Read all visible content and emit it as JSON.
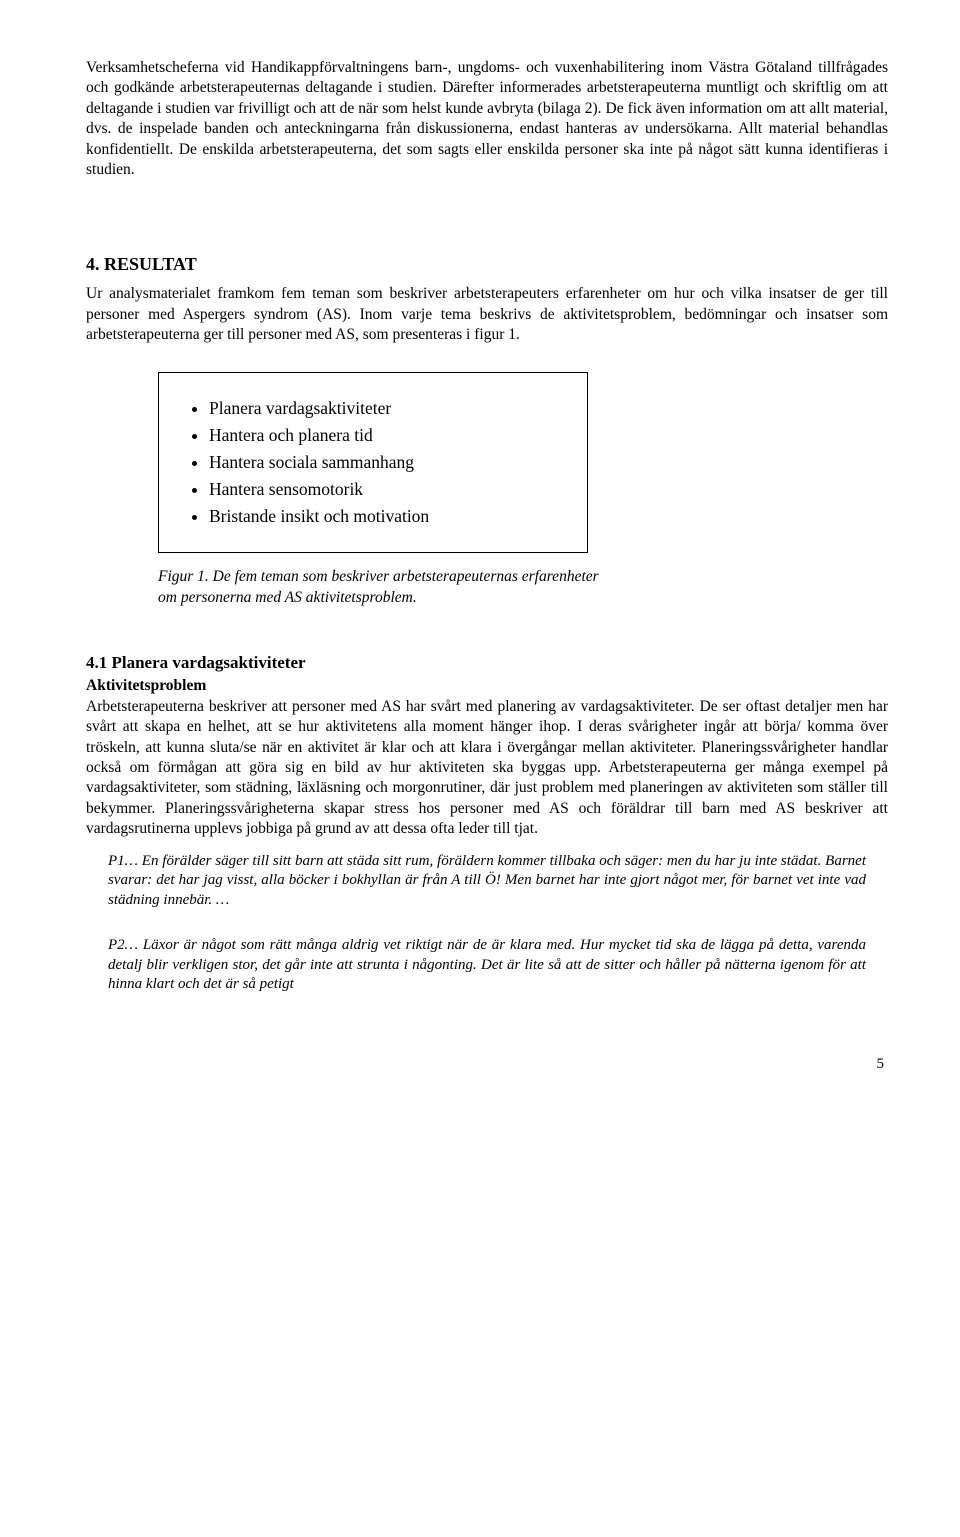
{
  "intro": {
    "p1": "Verksamhetscheferna vid Handikappförvaltningens barn-, ungdoms- och vuxenhabilitering inom Västra Götaland tillfrågades och godkände arbetsterapeuternas deltagande i studien. Därefter informerades arbetsterapeuterna muntligt och skriftlig om att deltagande i studien var frivilligt och att de när som helst kunde avbryta (bilaga 2). De fick även information om att allt material, dvs. de inspelade banden och anteckningarna från diskussionerna, endast hanteras av undersökarna. Allt material behandlas konfidentiellt. De enskilda arbetsterapeuterna, det som sagts eller enskilda personer ska inte på något sätt kunna identifieras i studien."
  },
  "resultat": {
    "heading": "4. RESULTAT",
    "p1": "Ur analysmaterialet framkom fem teman som beskriver arbetsterapeuters erfarenheter om hur och vilka insatser de ger till personer med Aspergers syndrom (AS). Inom varje tema beskrivs de aktivitetsproblem, bedömningar och insatser som arbetsterapeuterna ger till personer med AS, som presenteras i figur 1."
  },
  "themes": {
    "items": [
      "Planera vardagsaktiviteter",
      "Hantera och planera tid",
      "Hantera sociala sammanhang",
      "Hantera sensomotorik",
      "Bristande insikt och motivation"
    ]
  },
  "figcaption": "Figur 1. De fem teman som beskriver arbetsterapeuternas erfarenheter om personerna med AS aktivitetsproblem.",
  "sec41": {
    "heading": "4.1 Planera vardagsaktiviteter",
    "subheading": "Aktivitetsproblem",
    "p1": "Arbetsterapeuterna beskriver att personer med AS har svårt med planering av vardagsaktiviteter. De ser oftast detaljer men har svårt att skapa en helhet, att se hur aktivitetens alla moment hänger ihop. I deras svårigheter ingår att börja/ komma över tröskeln, att kunna sluta/se när en aktivitet är klar och att klara i övergångar mellan aktiviteter. Planeringssvårigheter handlar också om förmågan att göra sig en bild av hur aktiviteten ska byggas upp. Arbetsterapeuterna ger många exempel på vardagsaktiviteter, som städning, läxläsning och morgonrutiner, där just problem med planeringen av aktiviteten som ställer till bekymmer. Planeringssvårigheterna skapar stress hos personer med AS och föräldrar till barn med AS beskriver att vardagsrutinerna upplevs jobbiga på grund av att dessa ofta leder till tjat.",
    "q1": "P1… En förälder säger till sitt barn att städa sitt rum, föräldern kommer tillbaka och säger: men du har ju inte städat. Barnet svarar: det har jag visst, alla böcker i bokhyllan är från A till Ö! Men barnet har inte gjort något mer, för barnet vet inte vad städning innebär. …",
    "q2": "P2… Läxor är något som rätt många aldrig vet riktigt när de är klara med.  Hur mycket tid ska de lägga på detta, varenda detalj blir verkligen stor, det går inte att strunta i någonting. Det är lite så att de sitter och håller på nätterna igenom för att hinna klart och det är så petigt"
  },
  "pagenum": "5"
}
